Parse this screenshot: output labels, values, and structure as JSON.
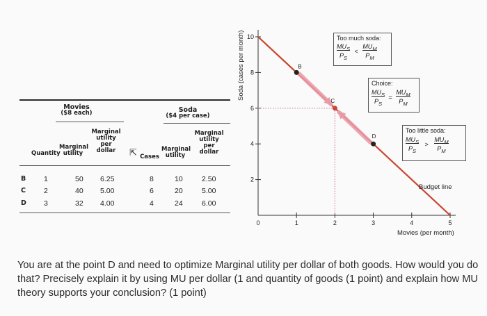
{
  "table": {
    "movies_title": "Movies",
    "movies_price": "($8 each)",
    "soda_title": "Soda",
    "soda_price": "($4 per case)",
    "columns": {
      "quantity": "Quantity",
      "mu_movies": [
        "Marginal",
        "utility"
      ],
      "mu_per_dollar_movies": [
        "Marginal",
        "utility",
        "per",
        "dollar"
      ],
      "cases": "Cases",
      "mu_soda": [
        "Marginal",
        "utility"
      ],
      "mu_per_dollar_soda": [
        "Marginal",
        "utility",
        "per",
        "dollar"
      ]
    },
    "rows": [
      {
        "point": "B",
        "quantity": "1",
        "mu_movies": "50",
        "mupd_movies": "6.25",
        "cases": "8",
        "mu_soda": "10",
        "mupd_soda": "2.50"
      },
      {
        "point": "C",
        "quantity": "2",
        "mu_movies": "40",
        "mupd_movies": "5.00",
        "cases": "6",
        "mu_soda": "20",
        "mupd_soda": "5.00"
      },
      {
        "point": "D",
        "quantity": "3",
        "mu_movies": "32",
        "mupd_movies": "4.00",
        "cases": "4",
        "mu_soda": "24",
        "mupd_soda": "6.00"
      }
    ]
  },
  "chart_data": {
    "type": "line",
    "title": "",
    "xlabel": "Movies (per month)",
    "ylabel": "Soda (cases per month)",
    "xlim": [
      0,
      5
    ],
    "ylim": [
      0,
      10
    ],
    "x_ticks": [
      "0",
      "1",
      "2",
      "3",
      "4",
      "5"
    ],
    "y_ticks": [
      "2",
      "4",
      "6",
      "8",
      "10"
    ],
    "series": [
      {
        "name": "Budget line",
        "x": [
          0,
          5
        ],
        "y": [
          10,
          0
        ]
      }
    ],
    "points": [
      {
        "label": "B",
        "x": 1,
        "y": 8
      },
      {
        "label": "C",
        "x": 2,
        "y": 6
      },
      {
        "label": "D",
        "x": 3,
        "y": 4
      }
    ],
    "annotations": {
      "too_much": {
        "title": "Too much soda:",
        "left": "MU_S / P_S",
        "op": "<",
        "right": "MU_M / P_M"
      },
      "choice": {
        "title": "Choice:",
        "left": "MU_S / P_S",
        "op": "=",
        "right": "MU_M / P_M"
      },
      "too_little": {
        "title": "Too little soda:",
        "left": "MU_S / P_S",
        "op": ">",
        "right": "MU_M / P_M"
      },
      "budget_label": "Budget line"
    },
    "colors": {
      "budget_line": "#c8472f",
      "highlight": "#e99aa7"
    }
  },
  "question": "You are at the point D and need to optimize Marginal utility per dollar of both goods. How would you do that? Precisely explain it by using MU per dollar (1 and quantity of goods (1 point) and explain how MU theory supports your conclusion? (1 point)"
}
